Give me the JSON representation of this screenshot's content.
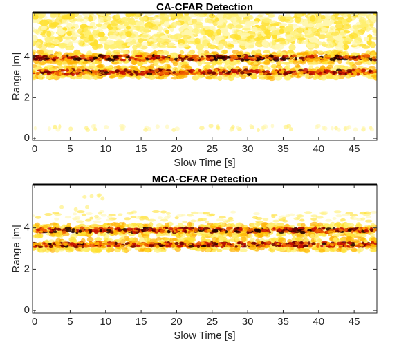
{
  "chart_data": [
    {
      "type": "detection-map",
      "title": "CA-CFAR Detection",
      "xlabel": "Slow Time [s]",
      "ylabel": "Range [m]",
      "xlim": [
        -0.3,
        48.2
      ],
      "ylim": [
        -0.1,
        6.2
      ],
      "xticks": [
        0,
        5,
        10,
        15,
        20,
        25,
        30,
        35,
        40,
        45
      ],
      "yticks": [
        0,
        2,
        4
      ]
    },
    {
      "type": "detection-map",
      "title": "MCA-CFAR Detection",
      "xlabel": "Slow Time [s]",
      "ylabel": "Range [m]",
      "xlim": [
        -0.3,
        48.2
      ],
      "ylim": [
        -0.13,
        6.1
      ],
      "xticks": [
        0,
        5,
        10,
        15,
        20,
        25,
        30,
        35,
        40,
        45
      ],
      "yticks": [
        0,
        2,
        4
      ]
    }
  ]
}
